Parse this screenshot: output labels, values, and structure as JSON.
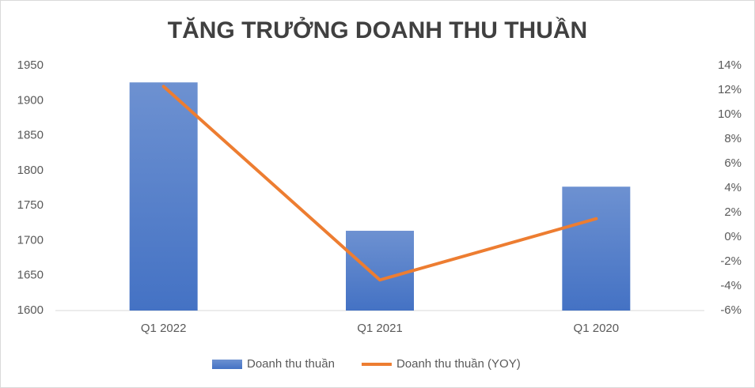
{
  "chart_data": {
    "type": "bar-line",
    "title": "TĂNG TRƯỞNG DOANH THU THUẦN",
    "categories": [
      "Q1 2022",
      "Q1 2021",
      "Q1 2020"
    ],
    "series": [
      {
        "name": "Doanh thu thuần",
        "type": "bar",
        "color": "#4472c4",
        "values": [
          1926,
          1714,
          1777
        ]
      },
      {
        "name": "Doanh thu thuần (YOY)",
        "type": "line",
        "color": "#ed7d31",
        "axis": "y2",
        "values": [
          12.3,
          -3.5,
          1.5
        ]
      }
    ],
    "ylim": [
      1600,
      1950
    ],
    "yticks": [
      1600,
      1650,
      1700,
      1750,
      1800,
      1850,
      1900,
      1950
    ],
    "y2lim": [
      -6,
      14
    ],
    "y2ticks": [
      {
        "value": -6,
        "label": "-6%"
      },
      {
        "value": -4,
        "label": "-4%"
      },
      {
        "value": -2,
        "label": "-2%"
      },
      {
        "value": 0,
        "label": "0%"
      },
      {
        "value": 2,
        "label": "2%"
      },
      {
        "value": 4,
        "label": "4%"
      },
      {
        "value": 6,
        "label": "6%"
      },
      {
        "value": 8,
        "label": "8%"
      },
      {
        "value": 10,
        "label": "10%"
      },
      {
        "value": 12,
        "label": "12%"
      },
      {
        "value": 14,
        "label": "14%"
      }
    ],
    "grid": false,
    "legend": "bottom"
  }
}
